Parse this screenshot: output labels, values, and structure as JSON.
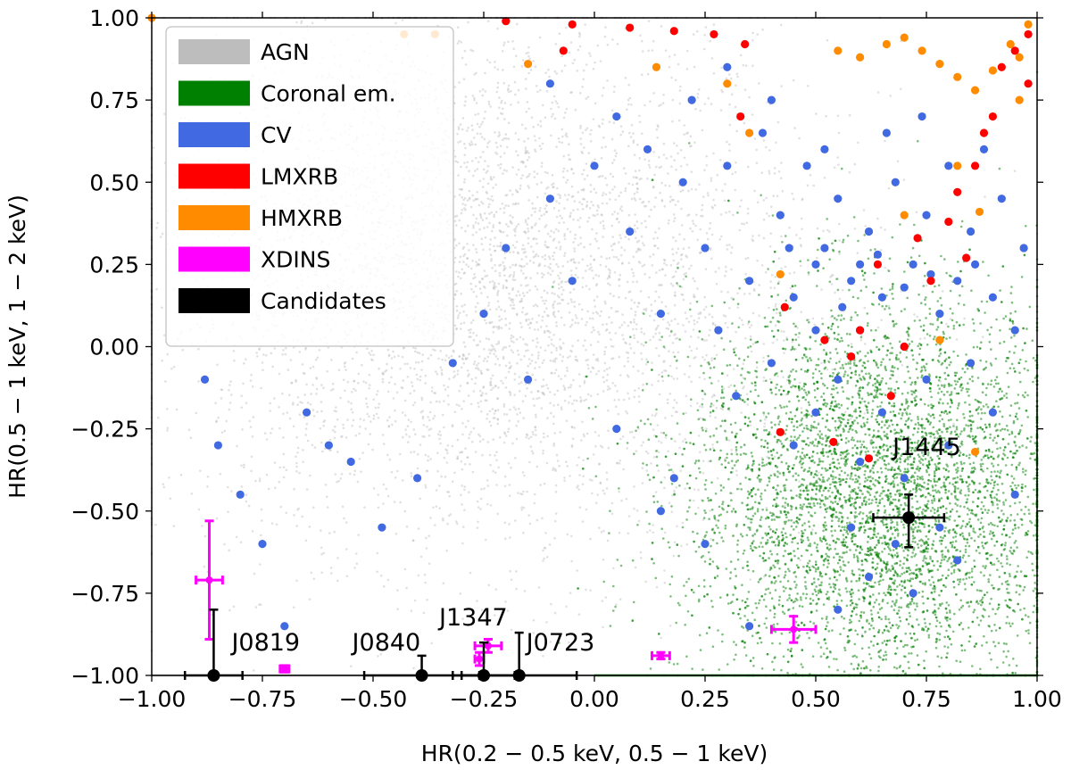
{
  "chart_data": {
    "type": "scatter",
    "xlabel": "HR(0.2 − 0.5 keV, 0.5 − 1 keV)",
    "ylabel": "HR(0.5 − 1 keV, 1 − 2 keV)",
    "xlim": [
      -1.0,
      1.0
    ],
    "ylim": [
      -1.0,
      1.0
    ],
    "x_ticks": [
      -1.0,
      -0.75,
      -0.5,
      -0.25,
      0.0,
      0.25,
      0.5,
      0.75,
      1.0
    ],
    "x_tick_labels": [
      "−1.00",
      "−0.75",
      "−0.50",
      "−0.25",
      "0.00",
      "0.25",
      "0.50",
      "0.75",
      "1.00"
    ],
    "y_ticks": [
      1.0,
      0.75,
      0.5,
      0.25,
      0.0,
      -0.25,
      -0.5,
      -0.75,
      -1.0
    ],
    "y_tick_labels": [
      "1.00",
      "0.75",
      "0.50",
      "0.25",
      "0.00",
      "−0.25",
      "−0.50",
      "−0.75",
      "−1.00"
    ],
    "grid": false,
    "legend_position": "upper-left",
    "legend": [
      {
        "label": "AGN",
        "color": "#bdbdbd"
      },
      {
        "label": "Coronal em.",
        "color": "#008000"
      },
      {
        "label": "CV",
        "color": "#4169e1"
      },
      {
        "label": "LMXRB",
        "color": "#ff0000"
      },
      {
        "label": "HMXRB",
        "color": "#ff8c00"
      },
      {
        "label": "XDINS",
        "color": "#ff00ff"
      },
      {
        "label": "Candidates",
        "color": "#000000"
      }
    ],
    "density_clouds": [
      {
        "name": "AGN",
        "color": "#bdbdbd",
        "center": [
          -0.25,
          0.2
        ],
        "spread": [
          0.38,
          0.42
        ],
        "description": "diffuse cloud of faint points"
      },
      {
        "name": "Coronal em.",
        "color": "#008000",
        "center": [
          0.65,
          -0.45
        ],
        "spread": [
          0.22,
          0.3
        ],
        "description": "dense cluster with a line at HR=-1.00"
      }
    ],
    "series": [
      {
        "name": "CV",
        "color": "#4169e1",
        "points": [
          [
            -0.88,
            -0.1
          ],
          [
            -0.85,
            -0.3
          ],
          [
            -0.8,
            -0.45
          ],
          [
            -0.75,
            -0.6
          ],
          [
            -0.7,
            -0.85
          ],
          [
            -0.65,
            -0.2
          ],
          [
            -0.6,
            -0.3
          ],
          [
            -0.55,
            -0.35
          ],
          [
            -0.48,
            -0.55
          ],
          [
            -0.4,
            -0.4
          ],
          [
            -0.32,
            -0.05
          ],
          [
            -0.25,
            0.1
          ],
          [
            -0.2,
            0.3
          ],
          [
            -0.15,
            -0.1
          ],
          [
            -0.1,
            0.45
          ],
          [
            -0.05,
            0.2
          ],
          [
            0.0,
            0.55
          ],
          [
            0.05,
            -0.25
          ],
          [
            0.08,
            0.35
          ],
          [
            0.12,
            0.6
          ],
          [
            0.15,
            0.1
          ],
          [
            0.18,
            -0.4
          ],
          [
            0.2,
            0.5
          ],
          [
            0.22,
            0.75
          ],
          [
            0.25,
            0.3
          ],
          [
            0.28,
            0.05
          ],
          [
            0.3,
            0.55
          ],
          [
            0.32,
            -0.15
          ],
          [
            0.35,
            0.2
          ],
          [
            0.38,
            0.65
          ],
          [
            0.4,
            -0.05
          ],
          [
            0.42,
            0.4
          ],
          [
            0.45,
            0.15
          ],
          [
            0.45,
            -0.3
          ],
          [
            0.48,
            0.55
          ],
          [
            0.5,
            0.05
          ],
          [
            0.5,
            -0.2
          ],
          [
            0.52,
            0.3
          ],
          [
            0.55,
            -0.1
          ],
          [
            0.55,
            0.45
          ],
          [
            0.58,
            0.2
          ],
          [
            0.6,
            -0.35
          ],
          [
            0.6,
            0.05
          ],
          [
            0.62,
            0.35
          ],
          [
            0.65,
            -0.2
          ],
          [
            0.65,
            0.15
          ],
          [
            0.68,
            0.5
          ],
          [
            0.7,
            0.0
          ],
          [
            0.7,
            -0.4
          ],
          [
            0.72,
            0.25
          ],
          [
            0.75,
            -0.1
          ],
          [
            0.75,
            0.4
          ],
          [
            0.78,
            0.1
          ],
          [
            0.8,
            -0.3
          ],
          [
            0.8,
            0.55
          ],
          [
            0.82,
            0.2
          ],
          [
            0.85,
            -0.05
          ],
          [
            0.85,
            0.35
          ],
          [
            0.88,
            0.6
          ],
          [
            0.9,
            -0.2
          ],
          [
            0.9,
            0.15
          ],
          [
            0.92,
            0.45
          ],
          [
            0.95,
            -0.45
          ],
          [
            0.95,
            0.05
          ],
          [
            0.97,
            0.3
          ],
          [
            0.58,
            -0.55
          ],
          [
            0.62,
            -0.7
          ],
          [
            0.68,
            -0.6
          ],
          [
            0.72,
            -0.75
          ],
          [
            0.78,
            -0.55
          ],
          [
            0.55,
            -0.8
          ],
          [
            0.82,
            -0.65
          ],
          [
            0.35,
            -0.85
          ],
          [
            0.25,
            -0.6
          ],
          [
            0.15,
            -0.5
          ],
          [
            0.52,
            0.6
          ],
          [
            0.66,
            0.65
          ],
          [
            0.74,
            0.7
          ],
          [
            0.4,
            0.75
          ],
          [
            0.05,
            0.7
          ],
          [
            -0.1,
            0.8
          ],
          [
            0.3,
            0.85
          ],
          [
            0.6,
            0.25
          ],
          [
            0.64,
            0.28
          ],
          [
            0.7,
            0.18
          ],
          [
            0.76,
            0.22
          ],
          [
            0.5,
            0.25
          ],
          [
            0.56,
            0.12
          ],
          [
            0.44,
            0.3
          ],
          [
            0.86,
            0.25
          ]
        ]
      },
      {
        "name": "LMXRB",
        "color": "#ff0000",
        "points": [
          [
            -0.2,
            0.99
          ],
          [
            -0.05,
            0.98
          ],
          [
            0.08,
            0.97
          ],
          [
            0.18,
            0.96
          ],
          [
            0.27,
            0.95
          ],
          [
            0.34,
            0.92
          ],
          [
            0.33,
            0.7
          ],
          [
            0.43,
            0.12
          ],
          [
            0.52,
            0.02
          ],
          [
            0.58,
            -0.03
          ],
          [
            0.6,
            0.05
          ],
          [
            0.64,
            0.25
          ],
          [
            0.67,
            -0.15
          ],
          [
            0.7,
            -0.0
          ],
          [
            0.73,
            0.33
          ],
          [
            0.76,
            0.2
          ],
          [
            0.8,
            0.38
          ],
          [
            0.82,
            0.47
          ],
          [
            0.84,
            0.27
          ],
          [
            0.86,
            0.55
          ],
          [
            0.88,
            0.65
          ],
          [
            0.9,
            0.7
          ],
          [
            0.92,
            0.85
          ],
          [
            0.95,
            0.9
          ],
          [
            0.98,
            0.8
          ],
          [
            0.98,
            0.95
          ],
          [
            0.54,
            -0.29
          ],
          [
            0.62,
            -0.34
          ],
          [
            0.42,
            -0.26
          ],
          [
            -0.07,
            0.9
          ]
        ]
      },
      {
        "name": "HMXRB",
        "color": "#ff8c00",
        "points": [
          [
            -1.0,
            1.0
          ],
          [
            -0.43,
            0.95
          ],
          [
            -0.36,
            0.95
          ],
          [
            -0.15,
            0.86
          ],
          [
            0.14,
            0.85
          ],
          [
            0.3,
            0.8
          ],
          [
            0.35,
            0.65
          ],
          [
            0.55,
            0.9
          ],
          [
            0.6,
            0.88
          ],
          [
            0.66,
            0.92
          ],
          [
            0.7,
            0.94
          ],
          [
            0.74,
            0.9
          ],
          [
            0.78,
            0.86
          ],
          [
            0.82,
            0.82
          ],
          [
            0.86,
            0.78
          ],
          [
            0.9,
            0.84
          ],
          [
            0.94,
            0.92
          ],
          [
            0.96,
            0.75
          ],
          [
            0.98,
            0.98
          ],
          [
            0.87,
            0.41
          ],
          [
            0.82,
            0.55
          ],
          [
            0.78,
            0.02
          ],
          [
            0.86,
            -0.32
          ],
          [
            0.7,
            0.4
          ],
          [
            0.96,
            0.88
          ],
          [
            0.42,
            0.22
          ]
        ]
      },
      {
        "name": "XDINS",
        "color": "#ff00ff",
        "points": [
          {
            "x": -0.87,
            "y": -0.71,
            "xerr": 0.03,
            "yerr": 0.18
          },
          {
            "x": -0.7,
            "y": -0.98,
            "xerr": 0.01,
            "yerr": 0.01
          },
          {
            "x": -0.26,
            "y": -0.95,
            "xerr": 0.01,
            "yerr": 0.02
          },
          {
            "x": -0.24,
            "y": -0.91,
            "xerr": 0.03,
            "yerr": 0.02
          },
          {
            "x": 0.15,
            "y": -0.94,
            "xerr": 0.02,
            "yerr": 0.01
          },
          {
            "x": 0.45,
            "y": -0.86,
            "xerr": 0.05,
            "yerr": 0.04
          }
        ]
      },
      {
        "name": "Candidates",
        "color": "#000000",
        "points": [
          {
            "x": -0.86,
            "y": -1.0,
            "xerr": 0.065,
            "yerr_up": 0.2,
            "yerr_down": 0.0,
            "label": "J0819"
          },
          {
            "x": -0.39,
            "y": -1.0,
            "xerr": 0.13,
            "yerr_up": 0.06,
            "yerr_down": 0.0,
            "label": "J0840"
          },
          {
            "x": -0.25,
            "y": -1.0,
            "xerr": 0.07,
            "yerr_up": 0.1,
            "yerr_down": 0.0,
            "label": "J1347"
          },
          {
            "x": -0.17,
            "y": -1.0,
            "xerr": 0.13,
            "yerr_up": 0.13,
            "yerr_down": 0.0,
            "label": "J0723"
          },
          {
            "x": 0.71,
            "y": -0.52,
            "xerr": 0.08,
            "yerr_up": 0.07,
            "yerr_down": 0.09,
            "label": "J1445"
          }
        ]
      }
    ]
  }
}
